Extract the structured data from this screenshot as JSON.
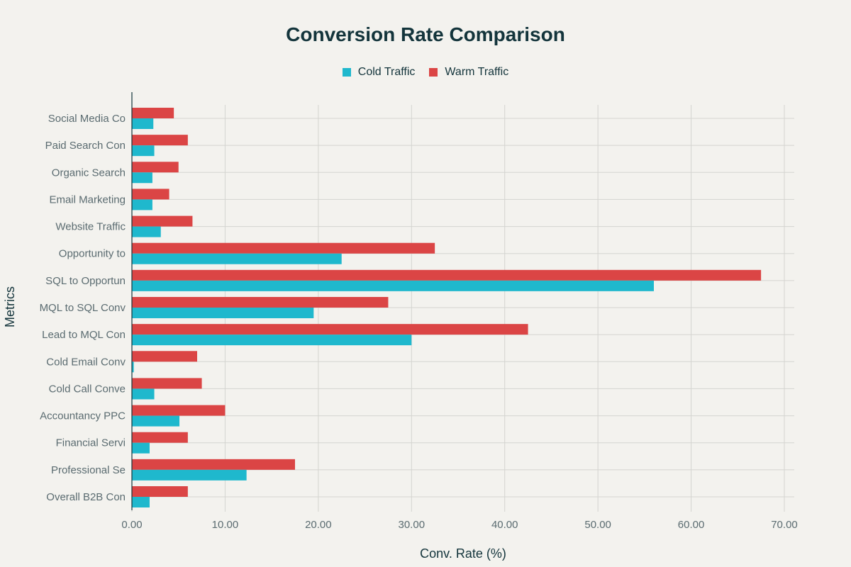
{
  "chart_data": {
    "type": "bar",
    "orientation": "horizontal",
    "title": "Conversion Rate Comparison",
    "xlabel": "Conv. Rate (%)",
    "ylabel": "Metrics",
    "xlim": [
      0,
      70
    ],
    "xticks": [
      "0.00",
      "10.00",
      "20.00",
      "30.00",
      "40.00",
      "50.00",
      "60.00",
      "70.00"
    ],
    "categories": [
      "Social Media Co",
      "Paid Search Con",
      "Organic Search ",
      "Email Marketing",
      "Website Traffic",
      "Opportunity to ",
      "SQL to Opportun",
      "MQL to SQL Conv",
      "Lead to MQL Con",
      "Cold Email Conv",
      "Cold Call Conve",
      "Accountancy PPC",
      "Financial Servi",
      "Professional Se",
      "Overall B2B Con"
    ],
    "series": [
      {
        "name": "Cold Traffic",
        "color": "#1fb8cd",
        "values": [
          2.3,
          2.4,
          2.2,
          2.2,
          3.1,
          22.5,
          56.0,
          19.5,
          30.0,
          0.2,
          2.4,
          5.1,
          1.9,
          12.3,
          1.9
        ]
      },
      {
        "name": "Warm Traffic",
        "color": "#db4545",
        "values": [
          4.5,
          6.0,
          5.0,
          4.0,
          6.5,
          32.5,
          67.5,
          27.5,
          42.5,
          7.0,
          7.5,
          10.0,
          6.0,
          17.5,
          6.0
        ]
      }
    ]
  }
}
